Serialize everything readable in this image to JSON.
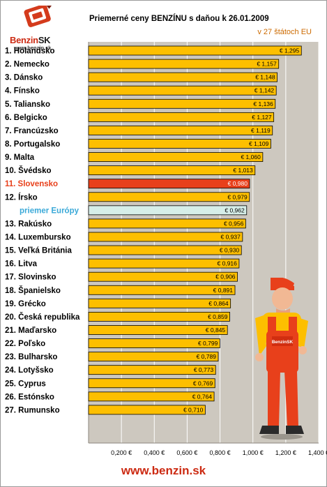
{
  "logo": {
    "brand": "Benzin",
    "brand_suffix": "SK",
    "url": "www.benzin.sk"
  },
  "footer": {
    "url": "www.benzin.sk"
  },
  "colors": {
    "bar": "#fdbf00",
    "bar_highlight": "#e8401b",
    "bar_average": "#d6eee8",
    "plot_bg": "#cdc8bf",
    "gridline": "#ffffff",
    "brand": "#cc2a12"
  },
  "chart_data": {
    "type": "bar",
    "orientation": "horizontal",
    "title": "Priemerné ceny BENZÍNU s daňou k 26.01.2009",
    "subtitle": "v 27 štátoch EU",
    "xlim": [
      0,
      1.4
    ],
    "xticks": [
      "0,200 €",
      "0,400 €",
      "0,600 €",
      "0,800 €",
      "1,000 €",
      "1,200 €",
      "1,400 €"
    ],
    "xtick_values": [
      0.2,
      0.4,
      0.6,
      0.8,
      1.0,
      1.2,
      1.4
    ],
    "grid": true,
    "categories": [
      "1. Holandsko",
      "2. Nemecko",
      "3. Dánsko",
      "4. Fínsko",
      "5. Taliansko",
      "6. Belgicko",
      "7. Francúzsko",
      "8. Portugalsko",
      "9. Malta",
      "10. Švédsko",
      "11. Slovensko",
      "12. Írsko",
      "priemer Európy",
      "13. Rakúsko",
      "14. Luxembursko",
      "15. Veľká Británia",
      "16. Litva",
      "17. Slovinsko",
      "18. Španielsko",
      "19. Grécko",
      "20. Česká republika",
      "21. Maďarsko",
      "22. Poľsko",
      "23. Bulharsko",
      "24. Lotyšsko",
      "25. Cyprus",
      "26. Estónsko",
      "27. Rumunsko"
    ],
    "values": [
      1.295,
      1.157,
      1.148,
      1.142,
      1.136,
      1.127,
      1.119,
      1.109,
      1.06,
      1.013,
      0.98,
      0.979,
      0.962,
      0.956,
      0.937,
      0.93,
      0.916,
      0.906,
      0.891,
      0.864,
      0.859,
      0.845,
      0.799,
      0.789,
      0.773,
      0.769,
      0.764,
      0.71
    ],
    "value_labels": [
      "€ 1,295",
      "€ 1,157",
      "€ 1,148",
      "€ 1,142",
      "€ 1,136",
      "€ 1,127",
      "€ 1,119",
      "€ 1,109",
      "€ 1,060",
      "€ 1,013",
      "€ 0,980",
      "€ 0,979",
      "€ 0,962",
      "€ 0,956",
      "€ 0,937",
      "€ 0,930",
      "€ 0,916",
      "€ 0,906",
      "€ 0,891",
      "€ 0,864",
      "€ 0,859",
      "€ 0,845",
      "€ 0,799",
      "€ 0,789",
      "€ 0,773",
      "€ 0,769",
      "€ 0,764",
      "€ 0,710"
    ],
    "highlight_index": 10,
    "average_index": 12
  }
}
